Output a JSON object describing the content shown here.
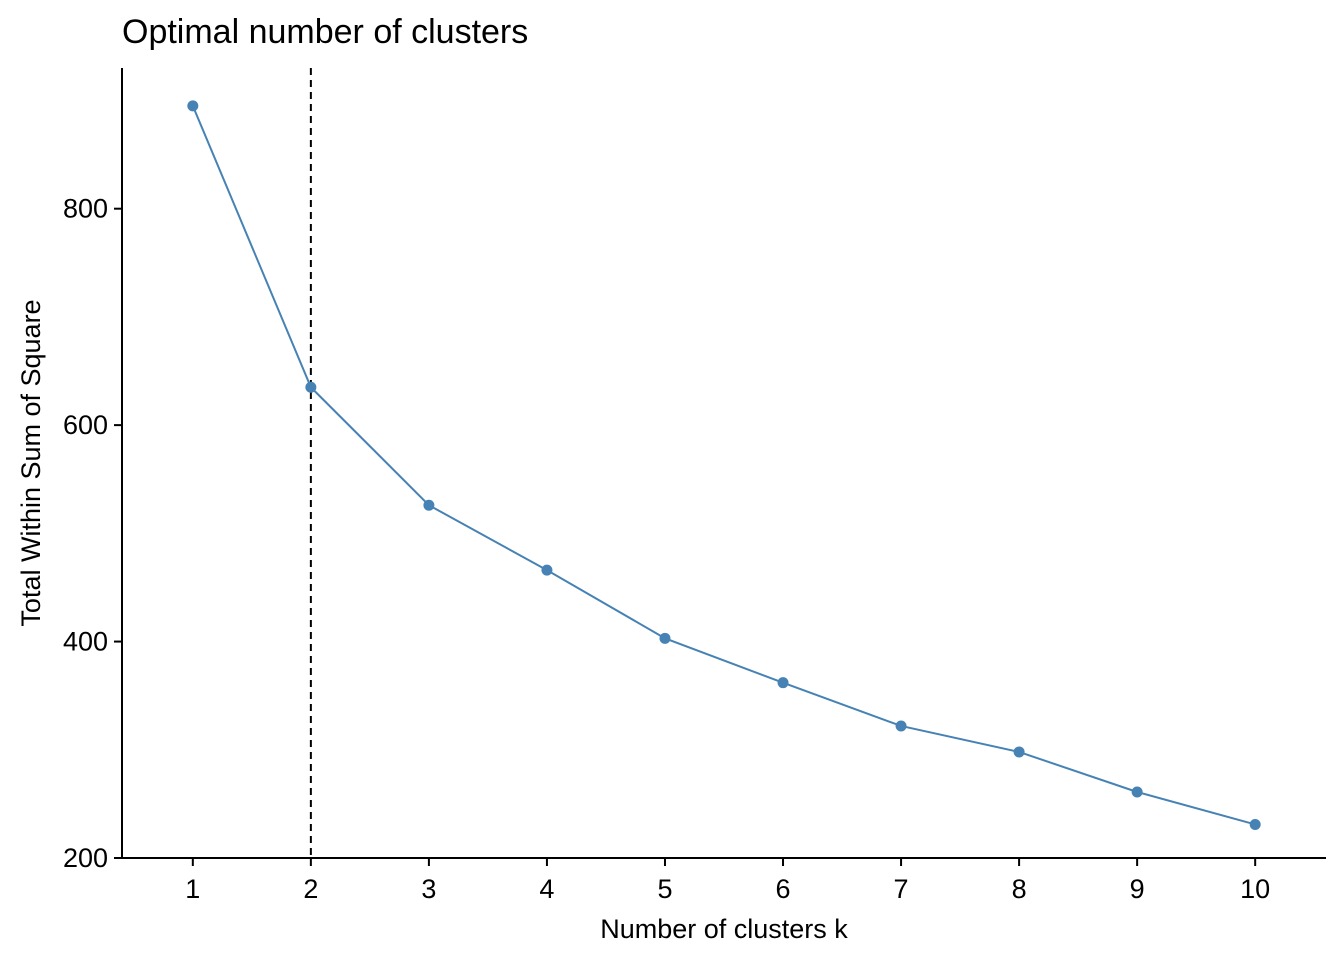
{
  "chart_data": {
    "type": "line",
    "title": "Optimal number of clusters",
    "xlabel": "Number of clusters k",
    "ylabel": "Total Within Sum of Square",
    "x": [
      1,
      2,
      3,
      4,
      5,
      6,
      7,
      8,
      9,
      10
    ],
    "x_tick_labels": [
      "1",
      "2",
      "3",
      "4",
      "5",
      "6",
      "7",
      "8",
      "9",
      "10"
    ],
    "y_ticks": [
      200,
      400,
      600,
      800
    ],
    "y_tick_labels": [
      "200",
      "400",
      "600",
      "800"
    ],
    "ylim": [
      200,
      930
    ],
    "xlim": [
      0.4,
      10.6
    ],
    "series": [
      {
        "values": [
          895,
          635,
          526,
          466,
          403,
          362,
          322,
          298,
          261,
          231
        ],
        "color": "#4682B4"
      }
    ],
    "reference_line": {
      "x": 2,
      "style": "dashed",
      "color": "#000000"
    },
    "grid": false,
    "legend": "none"
  }
}
